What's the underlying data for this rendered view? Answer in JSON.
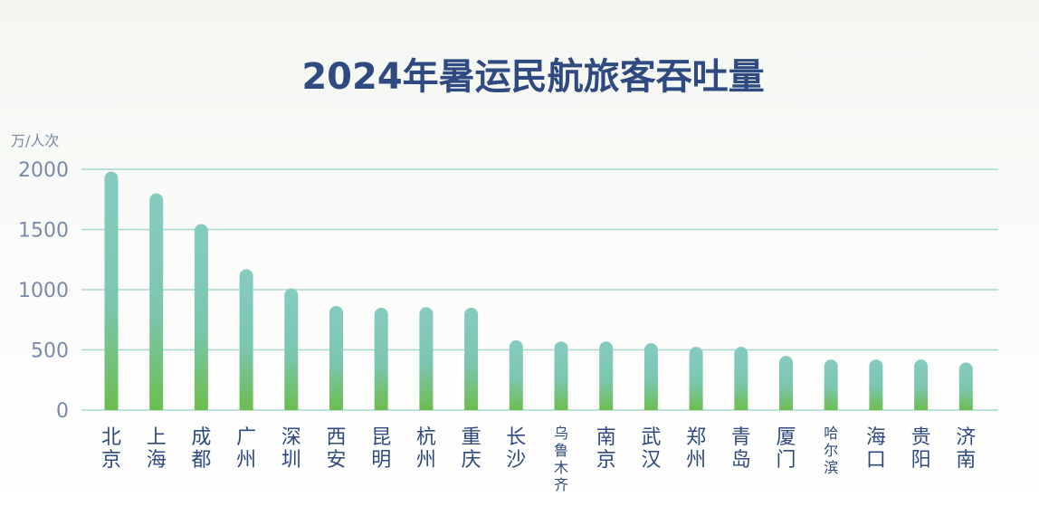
{
  "chart_data": {
    "type": "bar",
    "title": "2024年暑运民航旅客吞吐量",
    "ylabel": "万/人次",
    "xlabel": "",
    "ylim": [
      0,
      2000
    ],
    "yticks": [
      0,
      500,
      1000,
      1500,
      2000
    ],
    "grid": true,
    "categories": [
      "北京",
      "上海",
      "成都",
      "广州",
      "深圳",
      "西安",
      "昆明",
      "杭州",
      "重庆",
      "长沙",
      "乌鲁木齐",
      "南京",
      "武汉",
      "郑州",
      "青岛",
      "厦门",
      "哈尔滨",
      "海口",
      "贵阳",
      "济南"
    ],
    "values": [
      1980,
      1800,
      1545,
      1170,
      1010,
      865,
      850,
      855,
      850,
      580,
      570,
      570,
      555,
      525,
      525,
      450,
      420,
      420,
      420,
      395
    ],
    "colors": {
      "bar_top": "#86cbc1",
      "bar_bottom": "#6cbd4f",
      "title": "#2f4a80",
      "axis_text": "#7a8aa8",
      "grid": "#a8d8d4"
    }
  }
}
